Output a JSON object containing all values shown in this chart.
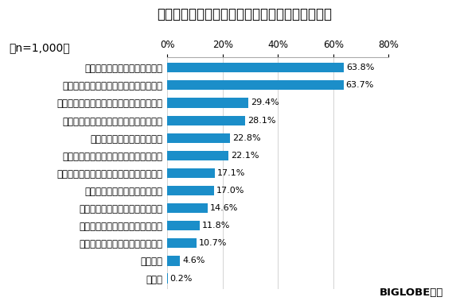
{
  "title": "在宅勤務をしてよかったと思うこと（複数回答）",
  "n_label": "（n=1,000）",
  "categories": [
    "ウイルスの感染リスクを防げる",
    "通勤のストレスがなく時間を活用できる",
    "オフィスより家のほうが仕事に集中できる",
    "無駄話や不要の打ち合わせがなくなった",
    "気力や体力的な余裕ができた",
    "家族との時間を長く持てるようになった",
    "自律して仕事の計画を立てるようになった",
    "職場での人間関係が楽になった",
    "以前より家事をするようになった",
    "無駄な飲み会や付き合いが減った",
    "上司から頼まれる仕事量が減った",
    "特にない",
    "その他"
  ],
  "values": [
    63.8,
    63.7,
    29.4,
    28.1,
    22.8,
    22.1,
    17.1,
    17.0,
    14.6,
    11.8,
    10.7,
    4.6,
    0.2
  ],
  "bar_color": "#1b8ec9",
  "xlim": [
    0,
    80
  ],
  "xticks": [
    0,
    20,
    40,
    60,
    80
  ],
  "xticklabels": [
    "0%",
    "20%",
    "40%",
    "60%",
    "80%"
  ],
  "background_color": "#ffffff",
  "title_fontsize": 12,
  "label_fontsize": 8.5,
  "value_fontsize": 8,
  "n_fontsize": 10,
  "footer_text": "BIGLOBE調べ",
  "footer_fontsize": 9.5
}
